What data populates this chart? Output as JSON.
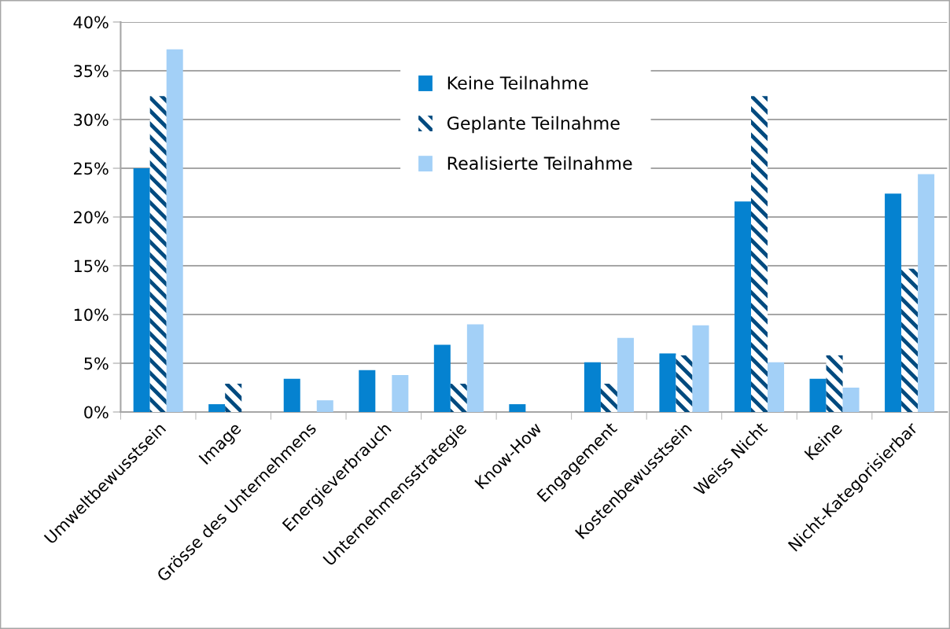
{
  "chart_data": {
    "type": "bar",
    "categories": [
      "Umweltbewusstsein",
      "Image",
      "Grösse des Unternehmens",
      "Energieverbrauch",
      "Unternehmensstrategie",
      "Know-How",
      "Engagement",
      "Kostenbewusstsein",
      "Weiss Nicht",
      "Keine",
      "Nicht-Kategorisierbar"
    ],
    "series": [
      {
        "name": "Keine Teilnahme",
        "color": "#0582d0",
        "values": [
          25.0,
          0.8,
          3.4,
          4.3,
          6.9,
          0.8,
          5.1,
          6.0,
          21.6,
          3.4,
          22.4
        ]
      },
      {
        "name": "Geplante Teilnahme",
        "color": "#004a7f",
        "values": [
          32.4,
          2.9,
          0,
          0,
          2.9,
          0,
          2.9,
          5.8,
          32.4,
          5.8,
          14.7
        ]
      },
      {
        "name": "Realisierte Teilnahme",
        "color": "#a3d0f7",
        "values": [
          37.2,
          0,
          1.2,
          3.8,
          9.0,
          0,
          7.6,
          8.9,
          5.1,
          2.5,
          24.4
        ]
      }
    ],
    "ylim": [
      0,
      40
    ],
    "yticks": [
      {
        "value": 0,
        "label": "0%"
      },
      {
        "value": 5,
        "label": "5%"
      },
      {
        "value": 10,
        "label": "10%"
      },
      {
        "value": 15,
        "label": "15%"
      },
      {
        "value": 20,
        "label": "20%"
      },
      {
        "value": 25,
        "label": "25%"
      },
      {
        "value": 30,
        "label": "30%"
      },
      {
        "value": 35,
        "label": "35%"
      },
      {
        "value": 40,
        "label": "40%"
      }
    ],
    "grid": "y",
    "legend": "top"
  }
}
